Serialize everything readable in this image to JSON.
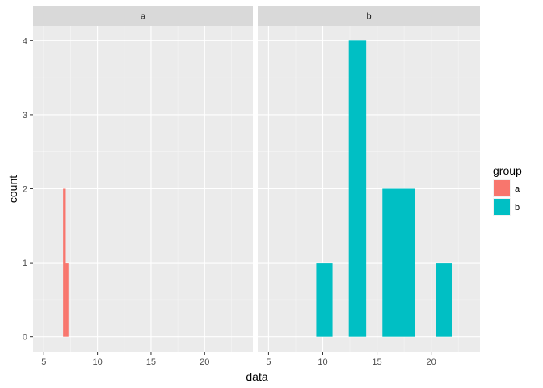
{
  "chart_data": {
    "type": "bar",
    "xlabel": "data",
    "ylabel": "count",
    "xlim": [
      4.0,
      24.5
    ],
    "ylim": [
      -0.2,
      4.2
    ],
    "x_ticks": [
      5,
      10,
      15,
      20
    ],
    "y_ticks": [
      0,
      1,
      2,
      3,
      4
    ],
    "grid": true,
    "legend": {
      "title": "group",
      "position": "right",
      "entries": [
        {
          "label": "a",
          "color": "#F8766D"
        },
        {
          "label": "b",
          "color": "#00BFC4"
        }
      ]
    },
    "panels": [
      {
        "strip": "a",
        "color": "#F8766D",
        "bars": [
          {
            "xmin": 6.8,
            "xmax": 7.05,
            "count": 2
          },
          {
            "xmin": 7.05,
            "xmax": 7.3,
            "count": 1
          }
        ]
      },
      {
        "strip": "b",
        "color": "#00BFC4",
        "bars": [
          {
            "xmin": 9.4,
            "xmax": 10.9,
            "count": 1
          },
          {
            "xmin": 12.4,
            "xmax": 14.0,
            "count": 4
          },
          {
            "xmin": 15.5,
            "xmax": 18.5,
            "count": 2
          },
          {
            "xmin": 20.4,
            "xmax": 21.9,
            "count": 1
          }
        ]
      }
    ]
  }
}
